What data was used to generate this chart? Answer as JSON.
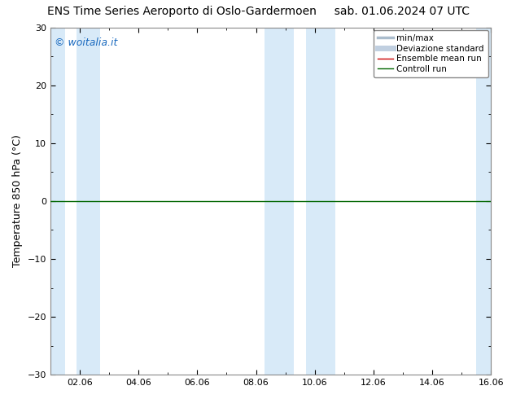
{
  "title_left": "ENS Time Series Aeroporto di Oslo-Gardermoen",
  "title_right": "sab. 01.06.2024 07 UTC",
  "ylabel": "Temperature 850 hPa (°C)",
  "ylim": [
    -30,
    30
  ],
  "yticks": [
    -30,
    -20,
    -10,
    0,
    10,
    20,
    30
  ],
  "xlim": [
    0,
    15
  ],
  "xtick_labels": [
    "02.06",
    "04.06",
    "06.06",
    "08.06",
    "10.06",
    "12.06",
    "14.06",
    "16.06"
  ],
  "xtick_positions": [
    1,
    3,
    5,
    7,
    9,
    11,
    13,
    15
  ],
  "shaded_bands": [
    [
      0.0,
      0.5
    ],
    [
      0.9,
      1.7
    ],
    [
      7.3,
      8.3
    ],
    [
      8.7,
      9.7
    ],
    [
      14.5,
      15.0
    ]
  ],
  "shaded_color": "#d8eaf8",
  "controll_run_y": 0,
  "controll_run_color": "#006600",
  "watermark": "© woitalia.it",
  "watermark_color": "#1a6abf",
  "legend_items": [
    {
      "label": "min/max",
      "color": "#aabccc",
      "lw": 2.5,
      "ls": "-"
    },
    {
      "label": "Deviazione standard",
      "color": "#c0cfe0",
      "lw": 5,
      "ls": "-"
    },
    {
      "label": "Ensemble mean run",
      "color": "#cc0000",
      "lw": 1.0,
      "ls": "-"
    },
    {
      "label": "Controll run",
      "color": "#006600",
      "lw": 1.0,
      "ls": "-"
    }
  ],
  "background_color": "#ffffff",
  "plot_bg_color": "#ffffff",
  "border_color": "#888888",
  "title_fontsize": 10,
  "ylabel_fontsize": 9,
  "tick_fontsize": 8,
  "watermark_fontsize": 9,
  "legend_fontsize": 7.5
}
